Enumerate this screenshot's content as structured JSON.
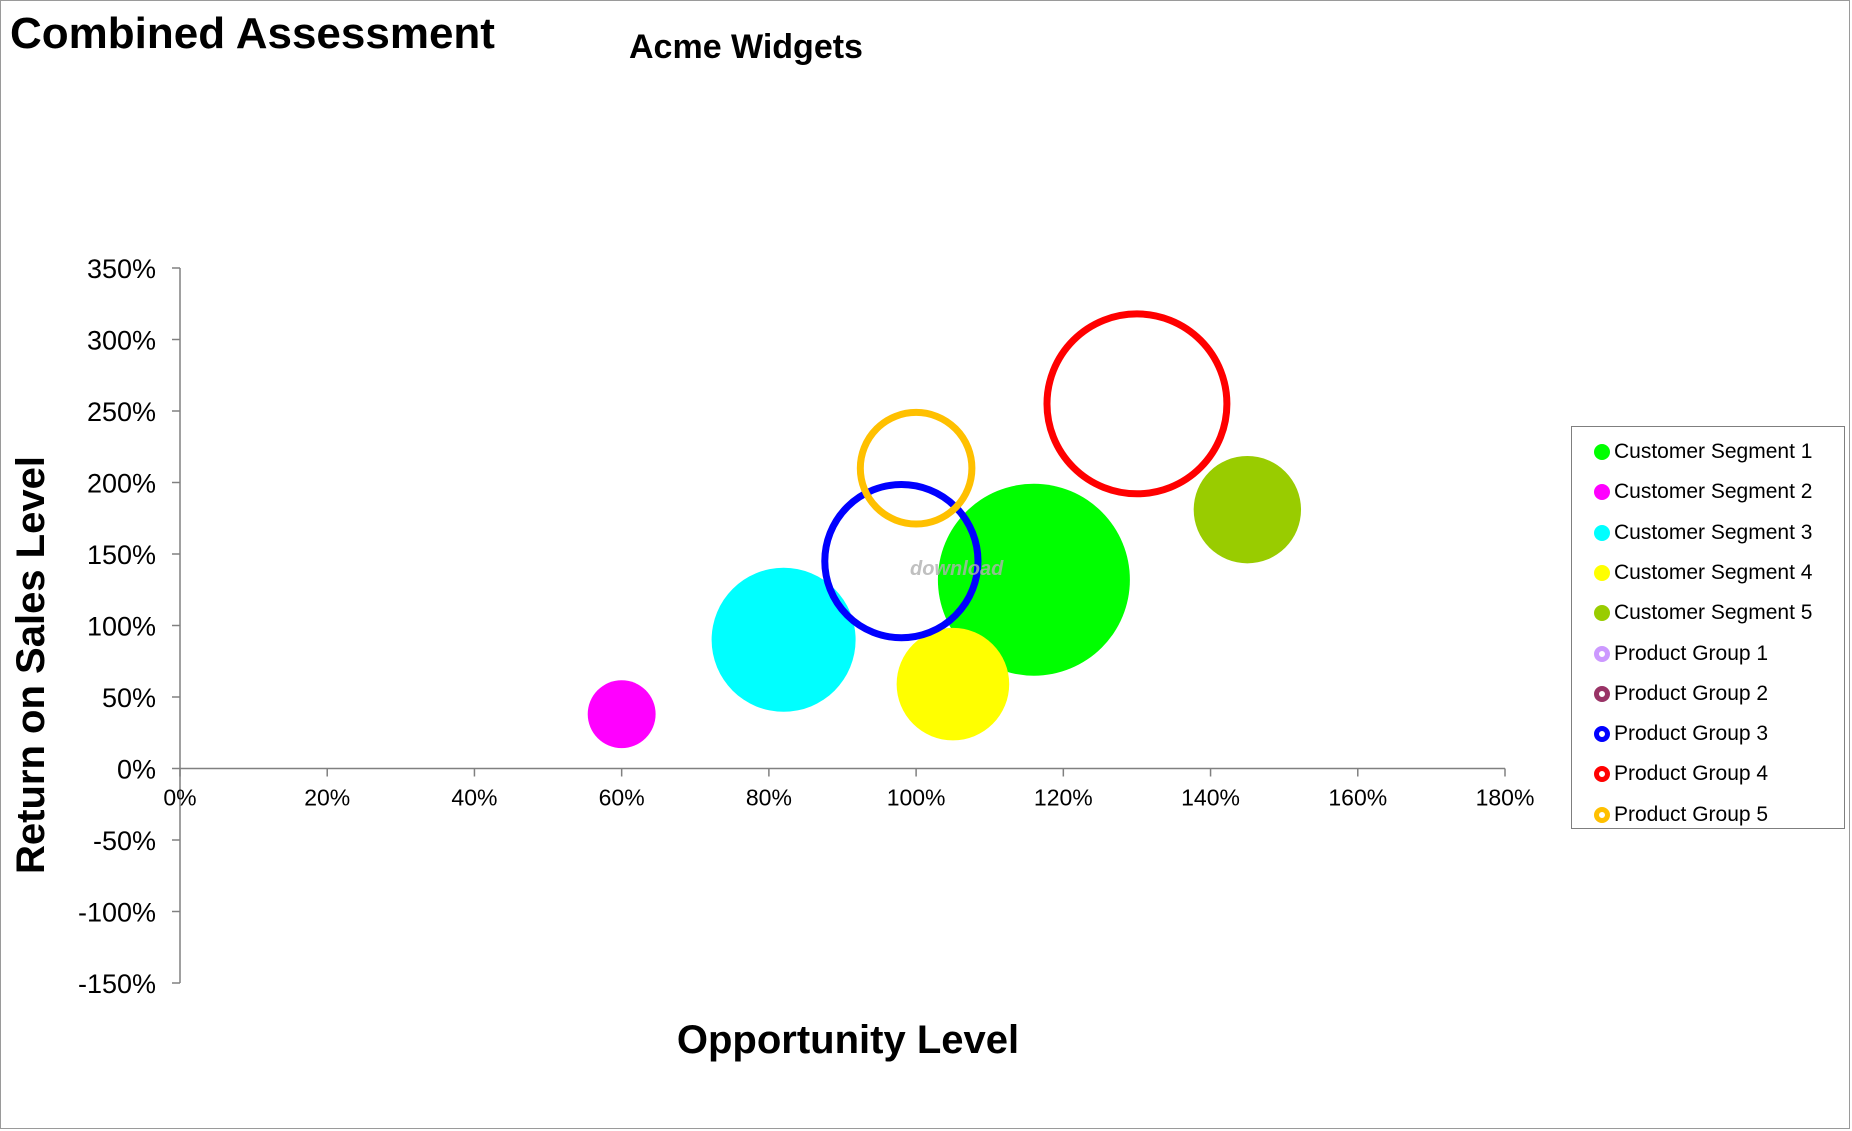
{
  "title": "Combined Assessment",
  "subtitle": "Acme Widgets",
  "watermark": "download",
  "chart_data": {
    "type": "bubble",
    "xlabel": "Opportunity Level",
    "ylabel": "Return on Sales Level",
    "xlim": [
      0,
      1.8
    ],
    "ylim": [
      -1.5,
      3.5
    ],
    "x_ticks": [
      "0%",
      "20%",
      "40%",
      "60%",
      "80%",
      "100%",
      "120%",
      "140%",
      "160%",
      "180%"
    ],
    "y_ticks": [
      "350%",
      "300%",
      "250%",
      "200%",
      "150%",
      "100%",
      "50%",
      "0%",
      "-50%",
      "-100%",
      "-150%"
    ],
    "grid": false,
    "legend_position": "right",
    "series": [
      {
        "name": "Customer Segment 1",
        "x": 1.16,
        "y": 1.32,
        "size": 3.2,
        "color": "#00ff00",
        "style": "filled"
      },
      {
        "name": "Customer Segment 2",
        "x": 0.6,
        "y": 0.38,
        "size": 0.4,
        "color": "#ff00ff",
        "style": "filled"
      },
      {
        "name": "Customer Segment 3",
        "x": 0.82,
        "y": 0.9,
        "size": 1.8,
        "color": "#00ffff",
        "style": "filled"
      },
      {
        "name": "Customer Segment 4",
        "x": 1.05,
        "y": 0.59,
        "size": 1.1,
        "color": "#ffff00",
        "style": "filled"
      },
      {
        "name": "Customer Segment 5",
        "x": 1.45,
        "y": 1.81,
        "size": 1.0,
        "color": "#99cc00",
        "style": "filled"
      },
      {
        "name": "Product Group 1",
        "x": null,
        "y": null,
        "size": null,
        "color": "#cc99ff",
        "style": "ring"
      },
      {
        "name": "Product Group 2",
        "x": null,
        "y": null,
        "size": null,
        "color": "#993366",
        "style": "ring"
      },
      {
        "name": "Product Group 3",
        "x": 0.98,
        "y": 1.45,
        "size": 2.2,
        "color": "#0000ff",
        "style": "ring"
      },
      {
        "name": "Product Group 4",
        "x": 1.3,
        "y": 2.55,
        "size": 3.0,
        "color": "#ff0000",
        "style": "ring"
      },
      {
        "name": "Product Group 5",
        "x": 1.0,
        "y": 2.1,
        "size": 1.2,
        "color": "#ffc000",
        "style": "ring"
      }
    ]
  }
}
